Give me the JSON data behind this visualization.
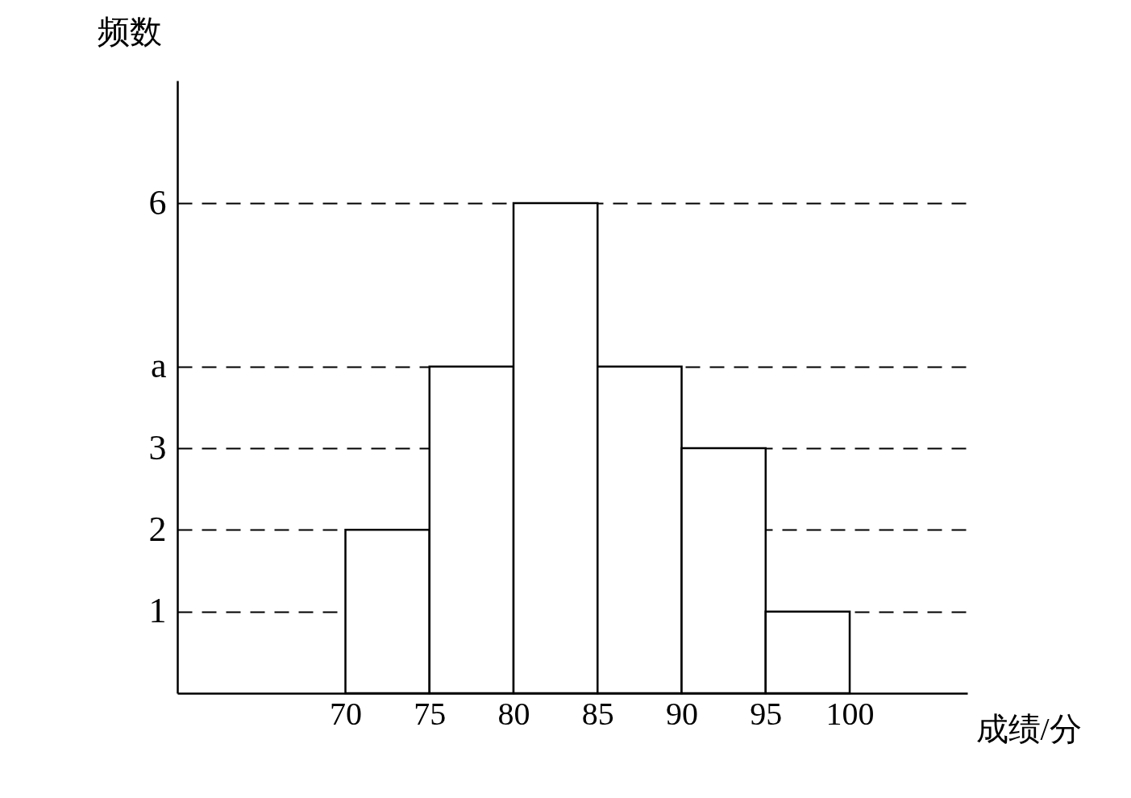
{
  "chart_data": {
    "type": "histogram",
    "xlabel": "成绩/分",
    "ylabel": "频数",
    "bins": [
      70,
      75,
      80,
      85,
      90,
      95,
      100
    ],
    "values": [
      2,
      4,
      6,
      4,
      3,
      1
    ],
    "color": "#ffffff",
    "xlim": [
      60,
      107
    ],
    "xticks": [
      70,
      75,
      80,
      85,
      90,
      95,
      100
    ],
    "ylim": [
      0,
      7.5
    ],
    "yticks": [
      1,
      2,
      3,
      {
        "value": 4,
        "label": "a"
      },
      6
    ],
    "grid": "y"
  }
}
